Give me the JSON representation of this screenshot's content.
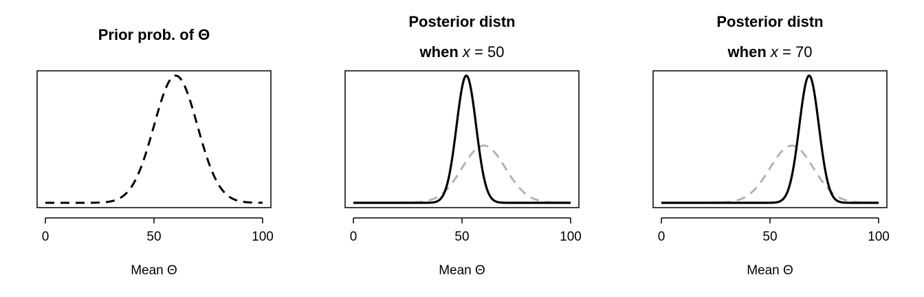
{
  "chart_data": [
    {
      "type": "line",
      "title": "Prior prob. of Θ",
      "subtitle": "",
      "xlabel": "Mean Θ",
      "ylabel": "",
      "xlim": [
        0,
        100
      ],
      "xticks": [
        0,
        50,
        100
      ],
      "yaxis_shown": false,
      "grid": false,
      "series": [
        {
          "role": "prior",
          "distribution": "normal",
          "mean": 60,
          "sd": 10,
          "color": "#000000",
          "style": "dashed"
        }
      ]
    },
    {
      "type": "line",
      "title": "Posterior distn",
      "subtitle_prefix": "when ",
      "subtitle_var": "x",
      "subtitle_suffix": " = 50",
      "xlabel": "Mean Θ",
      "ylabel": "",
      "xlim": [
        0,
        100
      ],
      "xticks": [
        0,
        50,
        100
      ],
      "yaxis_shown": false,
      "grid": false,
      "series": [
        {
          "role": "prior",
          "distribution": "normal",
          "mean": 60,
          "sd": 10,
          "color": "#b3b3b3",
          "style": "dashed"
        },
        {
          "role": "posterior",
          "distribution": "normal",
          "mean": 52,
          "sd": 4.5,
          "color": "#000000",
          "style": "solid"
        }
      ]
    },
    {
      "type": "line",
      "title": "Posterior distn",
      "subtitle_prefix": "when ",
      "subtitle_var": "x",
      "subtitle_suffix": " = 70",
      "xlabel": "Mean Θ",
      "ylabel": "",
      "xlim": [
        0,
        100
      ],
      "xticks": [
        0,
        50,
        100
      ],
      "yaxis_shown": false,
      "grid": false,
      "series": [
        {
          "role": "prior",
          "distribution": "normal",
          "mean": 60,
          "sd": 10,
          "color": "#b3b3b3",
          "style": "dashed"
        },
        {
          "role": "posterior",
          "distribution": "normal",
          "mean": 68,
          "sd": 4.5,
          "color": "#000000",
          "style": "solid"
        }
      ]
    }
  ]
}
